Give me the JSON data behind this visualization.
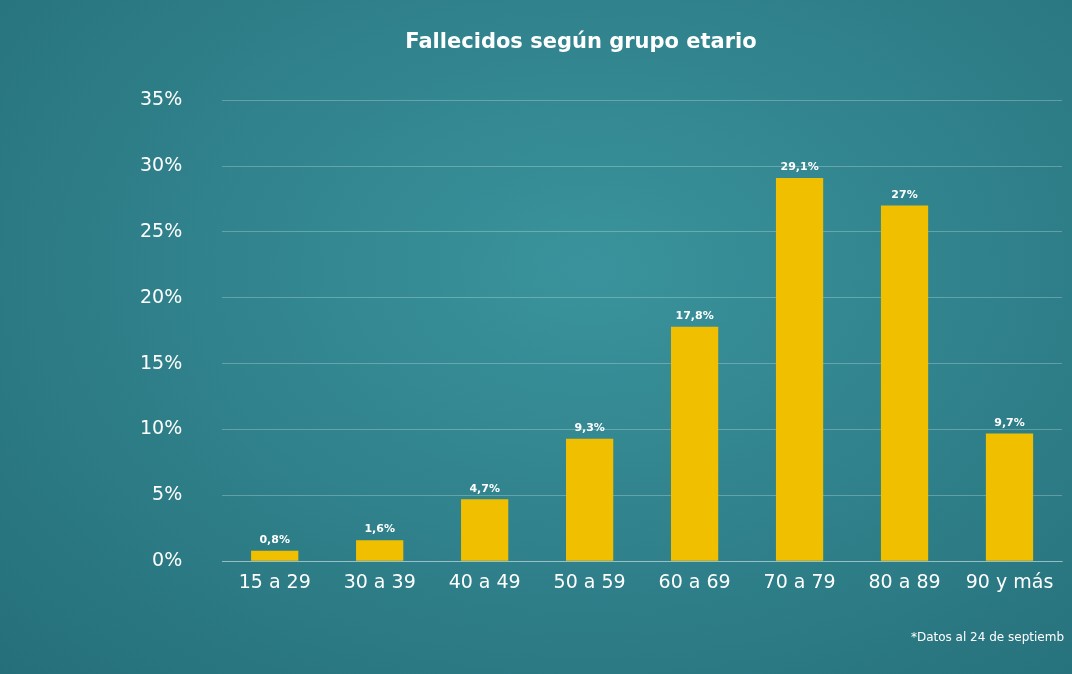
{
  "chart_data": {
    "type": "bar",
    "title": "Fallecidos según grupo etario",
    "categories": [
      "15 a 29",
      "30 a 39",
      "40 a 49",
      "50 a 59",
      "60 a 69",
      "70 a 79",
      "80 a 89",
      "90 y más"
    ],
    "values": [
      0.8,
      1.6,
      4.7,
      9.3,
      17.8,
      29.1,
      27,
      9.7
    ],
    "value_labels": [
      "0,8%",
      "1,6%",
      "4,7%",
      "9,3%",
      "17,8%",
      "29,1%",
      "27%",
      "9,7%"
    ],
    "color": "#f0c000",
    "ylim": [
      0,
      35
    ],
    "yticks": [
      {
        "value": 0,
        "label": "0%"
      },
      {
        "value": 5,
        "label": "5%"
      },
      {
        "value": 10,
        "label": "10%"
      },
      {
        "value": 15,
        "label": "15%"
      },
      {
        "value": 20,
        "label": "20%"
      },
      {
        "value": 25,
        "label": "25%"
      },
      {
        "value": 30,
        "label": "30%"
      },
      {
        "value": 35,
        "label": "35%"
      }
    ],
    "grid": "y",
    "legend": false,
    "annotations": [
      "*Datos al 24 de septiemb"
    ]
  }
}
